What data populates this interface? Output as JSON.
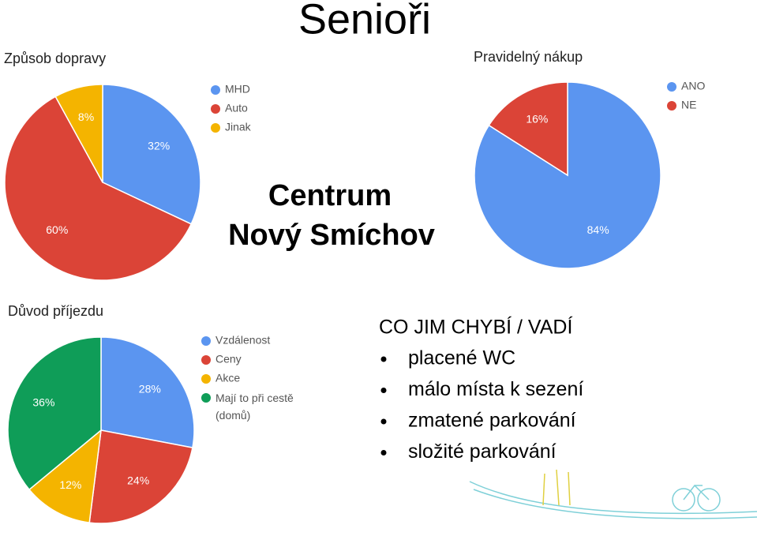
{
  "title": "Senioři",
  "subtitle": [
    "Centrum",
    "Nový Smíchov"
  ],
  "chart_data": [
    {
      "type": "pie",
      "title": "Způsob dopravy",
      "categories": [
        "MHD",
        "Auto",
        "Jinak"
      ],
      "values": [
        32,
        60,
        8
      ],
      "value_labels": [
        "32%",
        "60%",
        "8%"
      ],
      "colors": [
        "#5b95f0",
        "#db4437",
        "#f4b400"
      ],
      "legend": "right"
    },
    {
      "type": "pie",
      "title": "Pravidelný nákup",
      "categories": [
        "ANO",
        "NE"
      ],
      "values": [
        84,
        16
      ],
      "value_labels": [
        "84%",
        "16%"
      ],
      "colors": [
        "#5b95f0",
        "#db4437"
      ],
      "legend": "right"
    },
    {
      "type": "pie",
      "title": "Důvod příjezdu",
      "categories": [
        "Vzdálenost",
        "Ceny",
        "Akce",
        "Mají to při cestě (domů)"
      ],
      "values": [
        28,
        24,
        12,
        36
      ],
      "value_labels": [
        "28%",
        "24%",
        "12%",
        "36%"
      ],
      "colors": [
        "#5b95f0",
        "#db4437",
        "#f4b400",
        "#0f9d58"
      ],
      "legend": "right"
    }
  ],
  "notes": {
    "heading": "CO JIM CHYBÍ / VADÍ",
    "items": [
      "placené WC",
      "málo místa k sezení",
      "zmatené parkování",
      "složité parkování"
    ]
  }
}
